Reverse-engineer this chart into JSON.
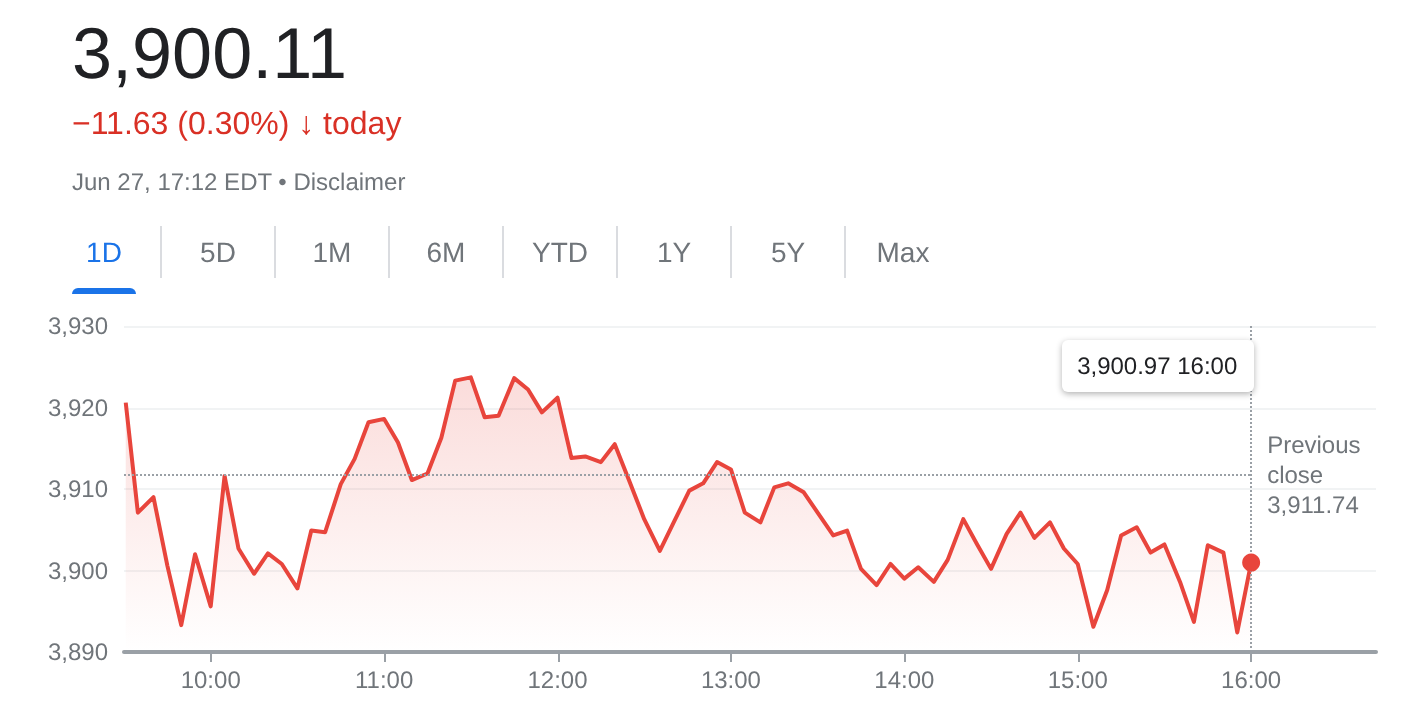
{
  "chart_data": {
    "type": "area",
    "title": "3,900.11",
    "subtitle": "−11.63 (0.30%) ↓ today",
    "annotations": [
      "Jun 27, 17:12 EDT • Disclaimer",
      "1D",
      "5D",
      "1M",
      "6M",
      "YTD",
      "1Y",
      "5Y",
      "Max",
      "3,900.97 16:00"
    ],
    "x": [
      9.51,
      9.58,
      9.67,
      9.75,
      9.83,
      9.91,
      10.0,
      10.08,
      10.16,
      10.25,
      10.33,
      10.41,
      10.5,
      10.58,
      10.66,
      10.75,
      10.83,
      10.91,
      11.0,
      11.08,
      11.16,
      11.25,
      11.33,
      11.41,
      11.5,
      11.58,
      11.66,
      11.75,
      11.83,
      11.91,
      12.0,
      12.08,
      12.16,
      12.25,
      12.33,
      12.41,
      12.5,
      12.59,
      12.67,
      12.76,
      12.84,
      12.92,
      13.0,
      13.08,
      13.17,
      13.25,
      13.33,
      13.42,
      13.5,
      13.59,
      13.67,
      13.75,
      13.84,
      13.92,
      14.0,
      14.08,
      14.17,
      14.25,
      14.34,
      14.42,
      14.5,
      14.59,
      14.67,
      14.75,
      14.84,
      14.92,
      15.0,
      15.09,
      15.17,
      15.25,
      15.34,
      15.42,
      15.5,
      15.59,
      15.67,
      15.75,
      15.84,
      15.92,
      16.0
    ],
    "series": [
      {
        "color": "#e8453c",
        "values": [
          3920.6,
          3907.1,
          3909.0,
          3900.6,
          3893.3,
          3902.0,
          3895.6,
          3911.6,
          3902.7,
          3899.6,
          3902.1,
          3900.8,
          3897.8,
          3904.9,
          3904.7,
          3910.6,
          3913.7,
          3918.2,
          3918.6,
          3915.7,
          3911.1,
          3911.9,
          3916.3,
          3923.3,
          3923.7,
          3918.8,
          3919.0,
          3923.6,
          3922.2,
          3919.4,
          3921.2,
          3913.8,
          3914.0,
          3913.3,
          3915.5,
          3911.2,
          3906.3,
          3902.4,
          3905.9,
          3909.8,
          3910.7,
          3913.3,
          3912.4,
          3907.1,
          3905.9,
          3910.2,
          3910.7,
          3909.6,
          3907.1,
          3904.3,
          3904.9,
          3900.2,
          3898.2,
          3900.8,
          3899.0,
          3900.4,
          3898.6,
          3901.3,
          3906.3,
          3903.2,
          3900.2,
          3904.5,
          3907.1,
          3904.0,
          3905.9,
          3902.7,
          3900.8,
          3893.1,
          3897.6,
          3904.3,
          3905.3,
          3902.2,
          3903.2,
          3898.6,
          3893.7,
          3903.1,
          3902.2,
          3892.4,
          3900.97
        ]
      }
    ],
    "xlim": [
      9.5,
      16.72
    ],
    "xticks": [
      {
        "value": 10,
        "label": "10:00"
      },
      {
        "value": 11,
        "label": "11:00"
      },
      {
        "value": 12,
        "label": "12:00"
      },
      {
        "value": 13,
        "label": "13:00"
      },
      {
        "value": 14,
        "label": "14:00"
      },
      {
        "value": 15,
        "label": "15:00"
      },
      {
        "value": 16,
        "label": "16:00"
      }
    ],
    "ylim": [
      3890,
      3930
    ],
    "yticks": [
      {
        "value": 3890,
        "label": "3,890"
      },
      {
        "value": 3900,
        "label": "3,900"
      },
      {
        "value": 3910,
        "label": "3,910"
      },
      {
        "value": 3920,
        "label": "3,920"
      },
      {
        "value": 3930,
        "label": "3,930"
      }
    ],
    "ref_lines": [
      {
        "axis": "y",
        "value": 3911.74,
        "label": "Previous close 3,911.74",
        "color": "#9aa0a6",
        "line_style": "dotted"
      },
      {
        "axis": "x",
        "value": 16,
        "color": "#9aa0a6",
        "line_style": "dotted"
      }
    ],
    "grid": "y",
    "marker": "none"
  }
}
